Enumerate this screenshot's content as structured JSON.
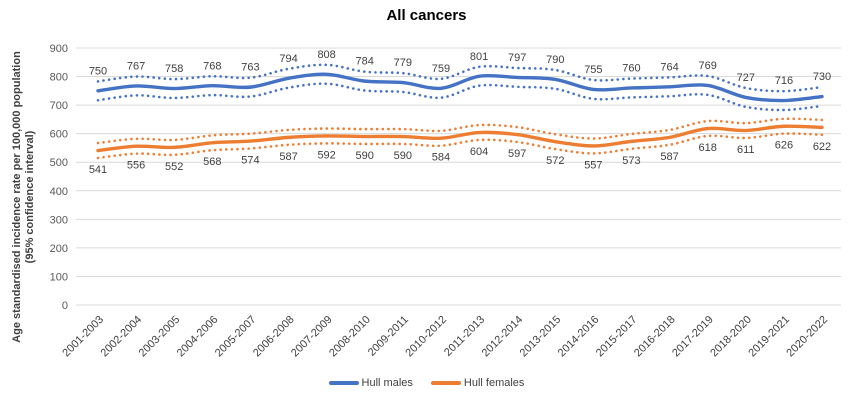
{
  "title": "All cancers",
  "y_axis": {
    "title_line1": "Age standardised incidence rate per 100,000 population",
    "title_line2": "(95% confidence interval)"
  },
  "legend": {
    "items": [
      {
        "label": "Hull males",
        "color": "#4472C4"
      },
      {
        "label": "Hull females",
        "color": "#ED7D31"
      }
    ]
  },
  "colors": {
    "gridline": "#D9D9D9",
    "axis_text": "#595959",
    "data_label": "#404040"
  },
  "chart_data": {
    "type": "line",
    "title": "All cancers",
    "xlabel": "",
    "ylabel": "Age standardised incidence rate per 100,000 population (95% confidence interval)",
    "ylim": [
      0,
      900
    ],
    "ytick_interval": 100,
    "grid": true,
    "legend_position": "bottom",
    "categories": [
      "2001-2003",
      "2002-2004",
      "2003-2005",
      "2004-2006",
      "2005-2007",
      "2006-2008",
      "2007-2009",
      "2008-2010",
      "2009-2011",
      "2010-2012",
      "2011-2013",
      "2012-2014",
      "2013-2015",
      "2014-2016",
      "2015-2017",
      "2016-2018",
      "2017-2019",
      "2018-2020",
      "2019-2021",
      "2020-2022"
    ],
    "series": [
      {
        "name": "Hull males",
        "color": "#4472C4",
        "style": "solid-with-dotted-ci",
        "values": [
          750,
          767,
          758,
          768,
          763,
          794,
          808,
          784,
          779,
          759,
          801,
          797,
          790,
          755,
          760,
          764,
          769,
          727,
          716,
          730
        ],
        "ci_offset": 33,
        "label_position": "above"
      },
      {
        "name": "Hull females",
        "color": "#ED7D31",
        "style": "solid-with-dotted-ci",
        "values": [
          541,
          556,
          552,
          568,
          574,
          587,
          592,
          590,
          590,
          584,
          604,
          597,
          572,
          557,
          573,
          587,
          618,
          611,
          626,
          622
        ],
        "ci_offset": 26,
        "label_position": "below"
      }
    ]
  }
}
